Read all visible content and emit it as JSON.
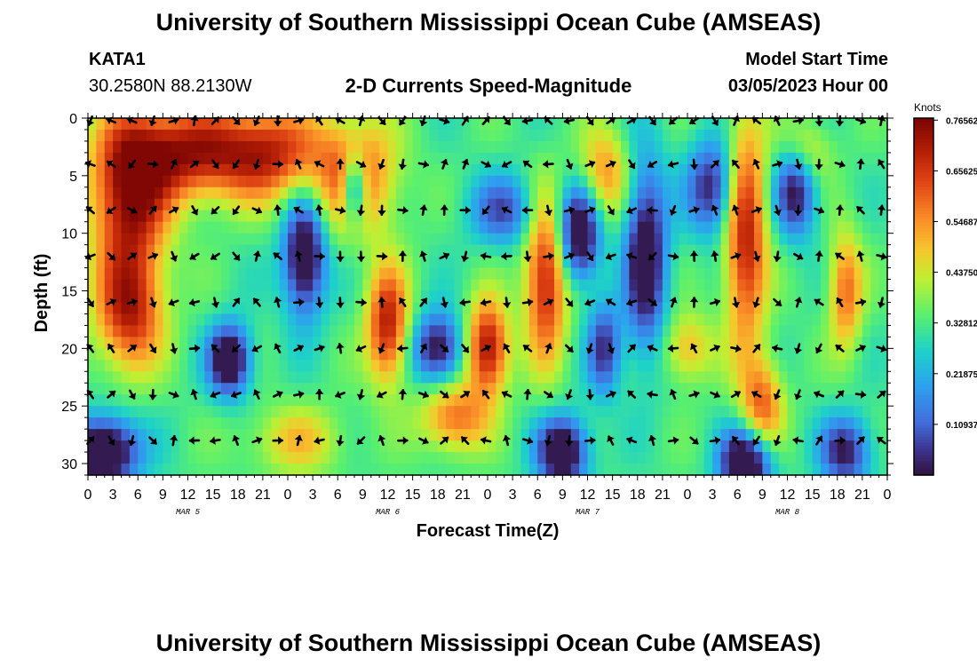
{
  "header": {
    "title": "University of Southern Mississippi Ocean Cube (AMSEAS)",
    "station": "KATA1",
    "coordinates": "30.2580N  88.2130W",
    "subtitle": "2-D Currents Speed-Magnitude",
    "model_start_label": "Model Start Time",
    "model_start_value": "03/05/2023 Hour 00",
    "footer_title": "University of Southern Mississippi Ocean Cube (AMSEAS)"
  },
  "chart_data": {
    "type": "heatmap",
    "title": "2-D Currents Speed-Magnitude",
    "xlabel": "Forecast Time(Z)",
    "ylabel": "Depth (ft)",
    "xlim": [
      0,
      96
    ],
    "ylim": [
      0,
      31
    ],
    "x_ticks": [
      0,
      3,
      6,
      9,
      12,
      15,
      18,
      21,
      24,
      27,
      30,
      33,
      36,
      39,
      42,
      45,
      48,
      51,
      54,
      57,
      60,
      63,
      66,
      69,
      72,
      75,
      78,
      81,
      84,
      87,
      90,
      93,
      96
    ],
    "x_tick_labels": [
      "0",
      "3",
      "6",
      "9",
      "12",
      "15",
      "18",
      "21",
      "0",
      "3",
      "6",
      "9",
      "12",
      "15",
      "18",
      "21",
      "0",
      "3",
      "6",
      "9",
      "12",
      "15",
      "18",
      "21",
      "0",
      "3",
      "6",
      "9",
      "12",
      "15",
      "18",
      "21",
      "0"
    ],
    "date_labels": [
      {
        "x": 12,
        "text": "MAR 5"
      },
      {
        "x": 36,
        "text": "MAR 6"
      },
      {
        "x": 60,
        "text": "MAR 7"
      },
      {
        "x": 84,
        "text": "MAR 8"
      }
    ],
    "y_ticks": [
      0,
      5,
      10,
      15,
      20,
      25,
      30
    ],
    "y_tick_labels": [
      "0",
      "5",
      "10",
      "15",
      "20",
      "25",
      "30"
    ],
    "colorbar": {
      "units": "Knots",
      "min": 0.0,
      "max": 0.77,
      "tick_values": [
        0.76562,
        0.65625,
        0.54687,
        0.4375,
        0.32812,
        0.21875,
        0.10937
      ],
      "tick_labels": [
        "0.76562",
        "0.65625",
        "0.54687",
        "0.43750",
        "0.32812",
        "0.21875",
        "0.10937"
      ]
    },
    "grid": false,
    "legend": "colorbar-right",
    "arrow_depths_ft": [
      0,
      4,
      8,
      12,
      16,
      20,
      24,
      28
    ],
    "arrow_interval_hours": 2.5
  },
  "colors": {
    "background": "#ffffff",
    "text": "#000000",
    "arrow": "#000000"
  }
}
